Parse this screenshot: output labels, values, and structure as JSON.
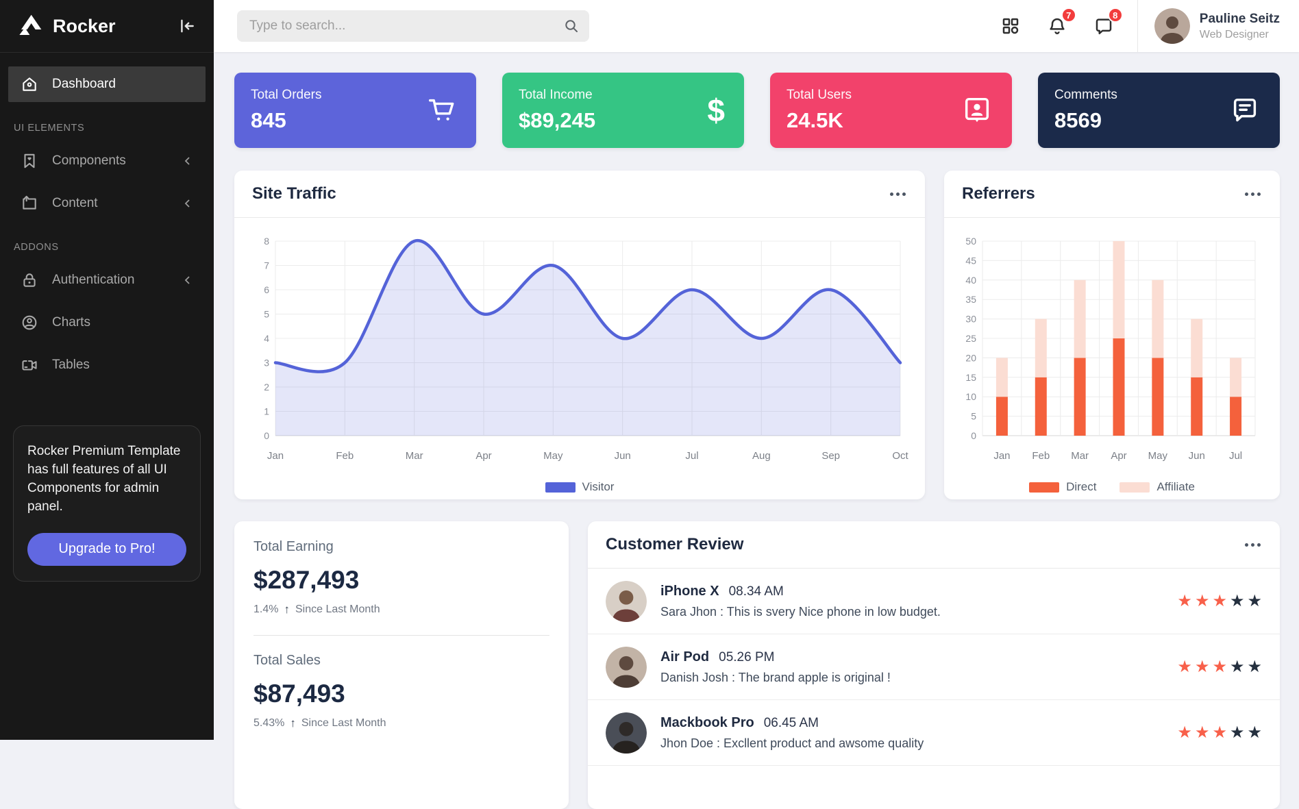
{
  "sidebar": {
    "brand": "Rocker",
    "menu": [
      {
        "label": "Dashboard"
      }
    ],
    "sections": [
      {
        "title": "UI ELEMENTS",
        "items": [
          {
            "label": "Components"
          },
          {
            "label": "Content"
          }
        ]
      },
      {
        "title": "ADDONS",
        "items": [
          {
            "label": "Authentication"
          },
          {
            "label": "Charts"
          },
          {
            "label": "Tables"
          }
        ]
      }
    ],
    "promo": {
      "text": "Rocker Premium Template has full features of all UI Components for admin panel.",
      "button": "Upgrade to Pro!"
    }
  },
  "topbar": {
    "search_placeholder": "Type to search...",
    "notifications_badge": "7",
    "messages_badge": "8",
    "user": {
      "name": "Pauline Seitz",
      "role": "Web Designer"
    }
  },
  "stat_cards": [
    {
      "label": "Total Orders",
      "value": "845",
      "icon": "cart-icon",
      "color": "#5d64da"
    },
    {
      "label": "Total Income",
      "value": "$89,245",
      "icon": "dollar-icon",
      "color": "#35c584"
    },
    {
      "label": "Total Users",
      "value": "24.5K",
      "icon": "user-badge-icon",
      "color": "#f2426b"
    },
    {
      "label": "Comments",
      "value": "8569",
      "icon": "comment-icon",
      "color": "#1b2a4a"
    }
  ],
  "chart_data": [
    {
      "id": "site-traffic",
      "type": "area",
      "title": "Site Traffic",
      "x": [
        "Jan",
        "Feb",
        "Mar",
        "Apr",
        "May",
        "Jun",
        "Jul",
        "Aug",
        "Sep",
        "Oct"
      ],
      "series": [
        {
          "name": "Visitor",
          "values": [
            3,
            3,
            8,
            5,
            7,
            4,
            6,
            4,
            6,
            3
          ]
        }
      ],
      "ylim": [
        0,
        8
      ],
      "ytick_step": 1,
      "line_color": "#5463d8",
      "fill_color": "rgba(85,100,215,0.16)",
      "grid": true,
      "legend_position": "bottom"
    },
    {
      "id": "referrers",
      "type": "bar",
      "title": "Referrers",
      "stacked": true,
      "x": [
        "Jan",
        "Feb",
        "Mar",
        "Apr",
        "May",
        "Jun",
        "Jul"
      ],
      "series": [
        {
          "name": "Direct",
          "values": [
            10,
            15,
            20,
            25,
            20,
            15,
            10
          ],
          "color": "#f4613c"
        },
        {
          "name": "Affiliate",
          "values": [
            10,
            15,
            20,
            25,
            20,
            15,
            10
          ],
          "color": "#fbddd3"
        }
      ],
      "ylim": [
        0,
        50
      ],
      "ytick_step": 5,
      "grid": true,
      "legend_position": "bottom"
    }
  ],
  "earnings": {
    "rows": [
      {
        "label": "Total Earning",
        "value": "$287,493",
        "change": "1.4%",
        "note": "Since Last Month"
      },
      {
        "label": "Total Sales",
        "value": "$87,493",
        "change": "5.43%",
        "note": "Since Last Month"
      }
    ]
  },
  "reviews": {
    "title": "Customer Review",
    "items": [
      {
        "product": "iPhone X",
        "time": "08.34 AM",
        "comment": "Sara Jhon : This is svery Nice phone in low budget.",
        "rating": 3,
        "rating_max": 5
      },
      {
        "product": "Air Pod",
        "time": "05.26 PM",
        "comment": "Danish Josh : The brand apple is original !",
        "rating": 3,
        "rating_max": 5
      },
      {
        "product": "Mackbook Pro",
        "time": "06.45 AM",
        "comment": "Jhon Doe : Excllent product and awsome quality",
        "rating": 3,
        "rating_max": 5
      }
    ]
  }
}
